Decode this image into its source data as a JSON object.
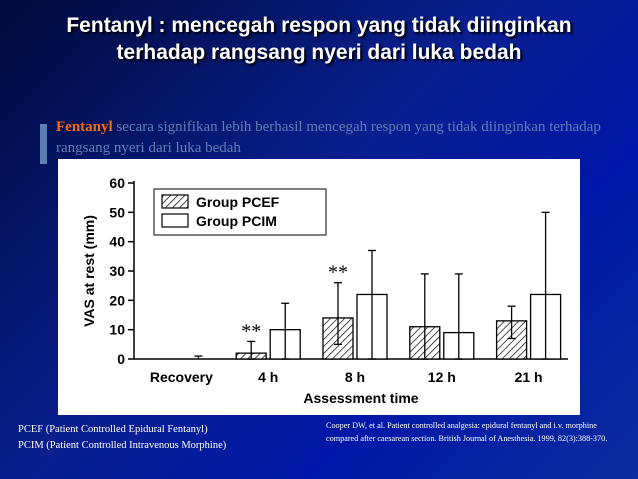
{
  "slide": {
    "title_line1": "Fentanyl : mencegah respon yang tidak diinginkan",
    "title_line2": "terhadap rangsang nyeri dari luka bedah",
    "subtitle_em": "Fentanyl",
    "subtitle_rest": " secara signifikan lebih berhasil mencegah respon yang tidak diinginkan terhadap rangsang nyeri dari luka bedah",
    "foot_left_line1": "PCEF (Patient Controlled Epidural Fentanyl)",
    "foot_left_line2": "PCIM (Patient Controlled Intravenous Morphine)",
    "citation": "Cooper DW, et al. Patient controlled analgesia: epidural fentanyl and i.v. morphine compared after caesarean section. British Journal of Anesthesia. 1999, 82(3):388-370."
  },
  "colors": {
    "background": "#0018a8",
    "title": "#ffffff",
    "accent": "#ff6a00",
    "subtitle": "#5f7fb4"
  },
  "chart_data": {
    "type": "bar",
    "title": "",
    "xlabel": "Assessment time",
    "ylabel": "VAS at rest (mm)",
    "ylim": [
      0,
      60
    ],
    "yticks": [
      "0",
      "10",
      "20",
      "30",
      "40",
      "50",
      "60"
    ],
    "categories": [
      "Recovery",
      "4 h",
      "8 h",
      "12 h",
      "21 h"
    ],
    "legend_position": "top-left",
    "series": [
      {
        "name": "Group PCEF",
        "pattern": "hatched",
        "values": [
          0,
          2,
          14,
          11,
          13
        ],
        "error_high": [
          0,
          6,
          26,
          29,
          18
        ],
        "error_low": [
          0,
          0,
          5,
          0,
          7
        ]
      },
      {
        "name": "Group PCIM",
        "pattern": "open",
        "values": [
          0,
          10,
          22,
          9,
          22
        ],
        "error_high": [
          1,
          19,
          37,
          29,
          50
        ],
        "error_low": [
          0,
          0,
          0,
          0,
          0
        ]
      }
    ],
    "annotations": [
      {
        "category": "4 h",
        "series": "Group PCEF",
        "text": "**"
      },
      {
        "category": "8 h",
        "series": "Group PCEF",
        "text": "**"
      }
    ]
  }
}
